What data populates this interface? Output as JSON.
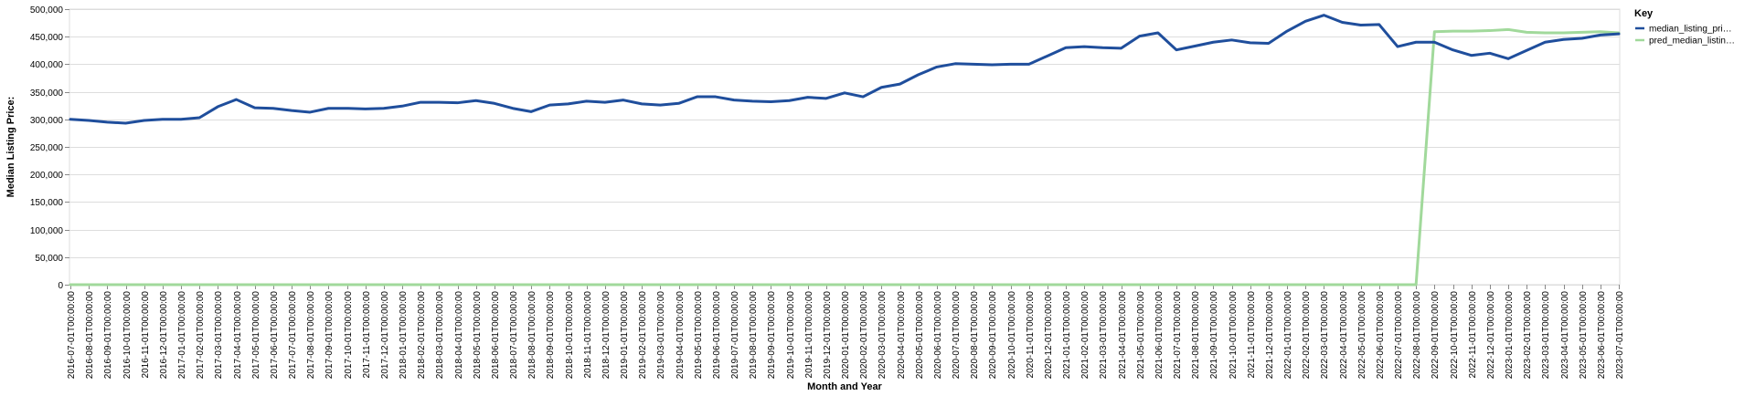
{
  "chart_data": {
    "type": "line",
    "xlabel": "Month and Year",
    "ylabel": "Median Listing Price:",
    "ylim": [
      0,
      500000
    ],
    "y_ticks": [
      "0",
      "50,000",
      "100,000",
      "150,000",
      "200,000",
      "250,000",
      "300,000",
      "350,000",
      "400,000",
      "450,000",
      "500,000"
    ],
    "y_tick_values": [
      0,
      50000,
      100000,
      150000,
      200000,
      250000,
      300000,
      350000,
      400000,
      450000,
      500000
    ],
    "grid": true,
    "legend": {
      "title": "Key",
      "position": "right"
    },
    "x": [
      "2016-07-01T00:00:00",
      "2016-08-01T00:00:00",
      "2016-09-01T00:00:00",
      "2016-10-01T00:00:00",
      "2016-11-01T00:00:00",
      "2016-12-01T00:00:00",
      "2017-01-01T00:00:00",
      "2017-02-01T00:00:00",
      "2017-03-01T00:00:00",
      "2017-04-01T00:00:00",
      "2017-05-01T00:00:00",
      "2017-06-01T00:00:00",
      "2017-07-01T00:00:00",
      "2017-08-01T00:00:00",
      "2017-09-01T00:00:00",
      "2017-10-01T00:00:00",
      "2017-11-01T00:00:00",
      "2017-12-01T00:00:00",
      "2018-01-01T00:00:00",
      "2018-02-01T00:00:00",
      "2018-03-01T00:00:00",
      "2018-04-01T00:00:00",
      "2018-05-01T00:00:00",
      "2018-06-01T00:00:00",
      "2018-07-01T00:00:00",
      "2018-08-01T00:00:00",
      "2018-09-01T00:00:00",
      "2018-10-01T00:00:00",
      "2018-11-01T00:00:00",
      "2018-12-01T00:00:00",
      "2019-01-01T00:00:00",
      "2019-02-01T00:00:00",
      "2019-03-01T00:00:00",
      "2019-04-01T00:00:00",
      "2019-05-01T00:00:00",
      "2019-06-01T00:00:00",
      "2019-07-01T00:00:00",
      "2019-08-01T00:00:00",
      "2019-09-01T00:00:00",
      "2019-10-01T00:00:00",
      "2019-11-01T00:00:00",
      "2019-12-01T00:00:00",
      "2020-01-01T00:00:00",
      "2020-02-01T00:00:00",
      "2020-03-01T00:00:00",
      "2020-04-01T00:00:00",
      "2020-05-01T00:00:00",
      "2020-06-01T00:00:00",
      "2020-07-01T00:00:00",
      "2020-08-01T00:00:00",
      "2020-09-01T00:00:00",
      "2020-10-01T00:00:00",
      "2020-11-01T00:00:00",
      "2020-12-01T00:00:00",
      "2021-01-01T00:00:00",
      "2021-02-01T00:00:00",
      "2021-03-01T00:00:00",
      "2021-04-01T00:00:00",
      "2021-05-01T00:00:00",
      "2021-06-01T00:00:00",
      "2021-07-01T00:00:00",
      "2021-08-01T00:00:00",
      "2021-09-01T00:00:00",
      "2021-10-01T00:00:00",
      "2021-11-01T00:00:00",
      "2021-12-01T00:00:00",
      "2022-01-01T00:00:00",
      "2022-02-01T00:00:00",
      "2022-03-01T00:00:00",
      "2022-04-01T00:00:00",
      "2022-05-01T00:00:00",
      "2022-06-01T00:00:00",
      "2022-07-01T00:00:00",
      "2022-08-01T00:00:00",
      "2022-09-01T00:00:00",
      "2022-10-01T00:00:00",
      "2022-11-01T00:00:00",
      "2022-12-01T00:00:00",
      "2023-01-01T00:00:00",
      "2023-02-01T00:00:00",
      "2023-03-01T00:00:00",
      "2023-04-01T00:00:00",
      "2023-05-01T00:00:00",
      "2023-06-01T00:00:00",
      "2023-07-01T00:00:00"
    ],
    "series": [
      {
        "name": "median_listing_pri…",
        "color": "#1f4e9c",
        "values": [
          300000,
          298000,
          295000,
          293000,
          298000,
          300000,
          300000,
          303000,
          323000,
          336000,
          321000,
          320000,
          316000,
          313000,
          320000,
          320000,
          319000,
          320000,
          324000,
          331000,
          331000,
          330000,
          334000,
          329000,
          320000,
          314000,
          326000,
          328000,
          333000,
          331000,
          335000,
          328000,
          326000,
          329000,
          341000,
          341000,
          335000,
          333000,
          332000,
          334000,
          340000,
          338000,
          348000,
          341000,
          358000,
          364000,
          381000,
          395000,
          401000,
          400000,
          399000,
          400000,
          400000,
          415000,
          430000,
          432000,
          430000,
          429000,
          451000,
          457000,
          426000,
          433000,
          440000,
          444000,
          439000,
          438000,
          460000,
          478000,
          489000,
          476000,
          471000,
          472000,
          432000,
          440000,
          440000,
          426000,
          416000,
          420000,
          410000,
          425000,
          440000,
          445000,
          447000,
          453000,
          455000
        ]
      },
      {
        "name": "pred_median_listin…",
        "color": "#a1d99b",
        "values": [
          0,
          0,
          0,
          0,
          0,
          0,
          0,
          0,
          0,
          0,
          0,
          0,
          0,
          0,
          0,
          0,
          0,
          0,
          0,
          0,
          0,
          0,
          0,
          0,
          0,
          0,
          0,
          0,
          0,
          0,
          0,
          0,
          0,
          0,
          0,
          0,
          0,
          0,
          0,
          0,
          0,
          0,
          0,
          0,
          0,
          0,
          0,
          0,
          0,
          0,
          0,
          0,
          0,
          0,
          0,
          0,
          0,
          0,
          0,
          0,
          0,
          0,
          0,
          0,
          0,
          0,
          0,
          0,
          0,
          0,
          0,
          0,
          0,
          0,
          459000,
          460000,
          460000,
          461000,
          463000,
          458000,
          457000,
          457000,
          458000,
          459000,
          457000
        ]
      }
    ]
  }
}
